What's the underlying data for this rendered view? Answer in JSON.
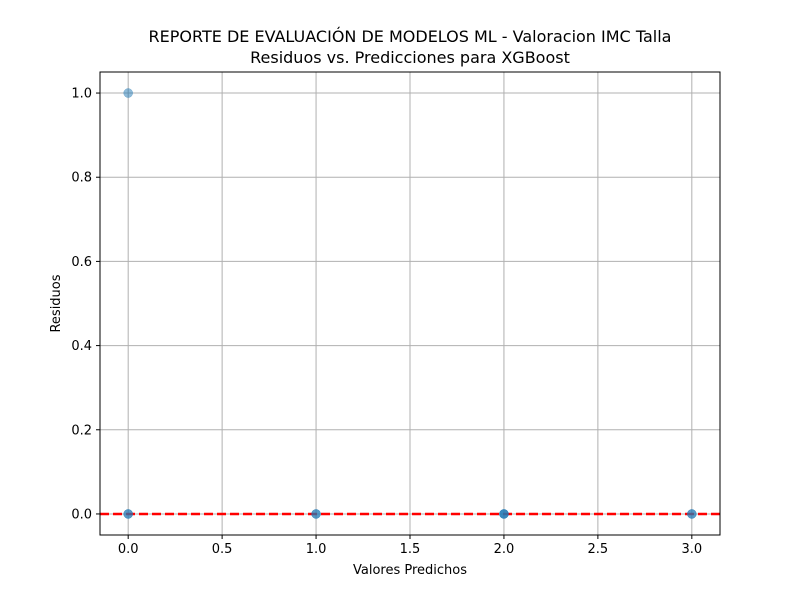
{
  "chart_data": {
    "type": "scatter",
    "title": "REPORTE DE EVALUACIÓN DE MODELOS ML - Valoracion IMC Talla",
    "subtitle": "Residuos vs. Predicciones para XGBoost",
    "xlabel": "Valores Predichos",
    "ylabel": "Residuos",
    "xlim": [
      -0.15,
      3.15
    ],
    "ylim": [
      -0.05,
      1.05
    ],
    "xticks": [
      0.0,
      0.5,
      1.0,
      1.5,
      2.0,
      2.5,
      3.0
    ],
    "xtick_labels": [
      "0.0",
      "0.5",
      "1.0",
      "1.5",
      "2.0",
      "2.5",
      "3.0"
    ],
    "yticks": [
      0.0,
      0.2,
      0.4,
      0.6,
      0.8,
      1.0
    ],
    "ytick_labels": [
      "0.0",
      "0.2",
      "0.4",
      "0.6",
      "0.8",
      "1.0"
    ],
    "grid": true,
    "points": [
      {
        "x": 0,
        "y": 1.0
      },
      {
        "x": 0,
        "y": 0.0
      },
      {
        "x": 0,
        "y": 0.0
      },
      {
        "x": 1,
        "y": 0.0
      },
      {
        "x": 1,
        "y": 0.0
      },
      {
        "x": 2,
        "y": 0.0
      },
      {
        "x": 2,
        "y": 0.0
      },
      {
        "x": 2,
        "y": 0.0
      },
      {
        "x": 3,
        "y": 0.0
      },
      {
        "x": 3,
        "y": 0.0
      }
    ],
    "reference_line": {
      "y": 0,
      "style": "dashed"
    },
    "colors": {
      "points": "#1f77b4",
      "reference_line": "#ff0000",
      "grid": "#b0b0b0"
    }
  }
}
